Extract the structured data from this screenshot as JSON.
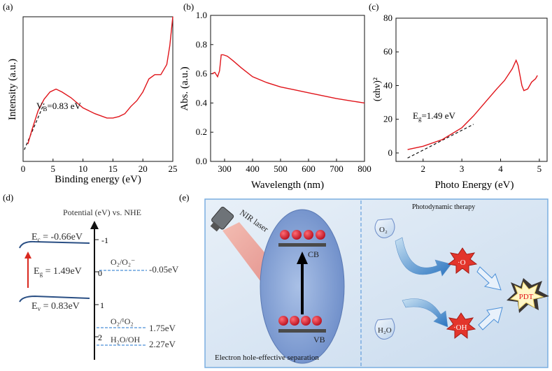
{
  "chart_data": [
    {
      "panel_label": "(a)",
      "type": "line",
      "title": "",
      "xlabel": "Binding energy (eV)",
      "ylabel": "Intensity (a.u.)",
      "xlim": [
        0,
        25
      ],
      "xticks": [
        0,
        5,
        10,
        15,
        20,
        25
      ],
      "x": [
        0.8,
        1.5,
        2.5,
        3.5,
        4.5,
        5.5,
        6.5,
        8,
        10,
        12,
        14,
        15,
        16,
        17,
        18,
        19,
        20,
        21,
        22,
        23,
        24,
        24.5,
        25
      ],
      "y": [
        0.12,
        0.22,
        0.35,
        0.43,
        0.48,
        0.5,
        0.48,
        0.44,
        0.37,
        0.33,
        0.3,
        0.3,
        0.31,
        0.33,
        0.38,
        0.42,
        0.48,
        0.57,
        0.6,
        0.6,
        0.67,
        0.8,
        1.0
      ],
      "fit_line": {
        "x": [
          0.2,
          3.5
        ],
        "y": [
          0.08,
          0.4
        ]
      },
      "annotation": {
        "main": "V",
        "sub": "B",
        "rest": "=0.83 eV"
      }
    },
    {
      "panel_label": "(b)",
      "type": "line",
      "title": "",
      "xlabel": "Wavelength (nm)",
      "ylabel": "Abs. (a.u.)",
      "xlim": [
        250,
        800
      ],
      "ylim": [
        0.0,
        1.0
      ],
      "xticks": [
        300,
        400,
        500,
        600,
        700,
        800
      ],
      "yticks": [
        0.0,
        0.2,
        0.4,
        0.6,
        0.8,
        1.0
      ],
      "x": [
        255,
        265,
        275,
        282,
        288,
        295,
        310,
        330,
        360,
        400,
        450,
        500,
        550,
        600,
        650,
        700,
        750,
        800
      ],
      "y": [
        0.6,
        0.61,
        0.58,
        0.62,
        0.73,
        0.73,
        0.72,
        0.69,
        0.64,
        0.58,
        0.54,
        0.51,
        0.49,
        0.47,
        0.45,
        0.43,
        0.415,
        0.4
      ]
    },
    {
      "panel_label": "(c)",
      "type": "line",
      "title": "",
      "xlabel": "Photo Energy (eV)",
      "ylabel": "(αhν)²",
      "xlim": [
        1.3,
        5.2
      ],
      "ylim": [
        -5,
        80
      ],
      "xticks": [
        2,
        3,
        4,
        5
      ],
      "yticks": [
        0,
        20,
        40,
        60,
        80
      ],
      "x": [
        1.6,
        2.0,
        2.5,
        3.0,
        3.3,
        3.6,
        3.9,
        4.1,
        4.3,
        4.4,
        4.45,
        4.55,
        4.6,
        4.7,
        4.8,
        4.9,
        4.95
      ],
      "y": [
        2,
        4,
        8,
        15,
        22,
        30,
        38,
        43,
        50,
        55,
        52,
        40,
        37,
        38,
        42,
        44,
        46
      ],
      "fit_line": {
        "x": [
          1.6,
          3.3
        ],
        "y": [
          -3,
          17
        ]
      },
      "annotation": {
        "main": "E",
        "sub": "g",
        "rest": "=1.49 eV"
      }
    }
  ],
  "panel_d": {
    "label": "(d)",
    "axis_title": "Potential (eV) vs. NHE",
    "ticks": [
      "-1",
      "0",
      "1",
      "2"
    ],
    "ec": {
      "main": "E",
      "sub": "c",
      "rest": " = -0.66eV"
    },
    "eg": {
      "main": "E",
      "sub": "g",
      "rest": " = 1.49eV"
    },
    "ev": {
      "main": "E",
      "sub": "v",
      "rest": " = 0.83eV"
    },
    "couples": [
      {
        "label": "O₂/O₂⁻",
        "value": "-0.05eV"
      },
      {
        "label": "O₂/¹O₂",
        "value": "1.75eV"
      },
      {
        "label": "H₂O/OH",
        "value": "2.27eV"
      }
    ],
    "colors": {
      "band": "#2a4f84",
      "dashed": "#4a8fd8",
      "arrow": "#d9281e"
    }
  },
  "panel_e": {
    "label": "(e)",
    "laser_label": "NIR laser",
    "cb_label": "CB",
    "vb_label": "VB",
    "separation_label": "Electron hole-effective separation",
    "pdt_section_title": "Photodynamic therapy",
    "o2_label": "O₂",
    "superoxide_label": "·O",
    "h2o_label": "H₂O",
    "oh_label": "·OH",
    "pdt_label": "PDT",
    "colors": {
      "electron": "#d8182a",
      "burst": "#e3352b",
      "panel_bg": "#dde8f3",
      "border": "#7aaee0"
    }
  }
}
